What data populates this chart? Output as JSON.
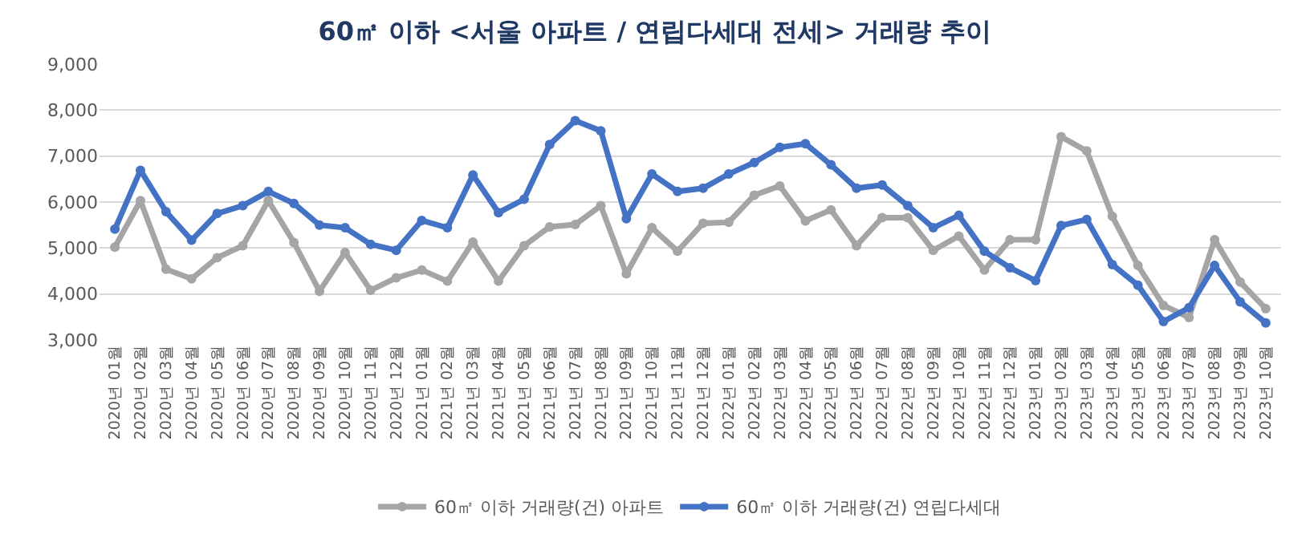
{
  "chart_data": {
    "type": "line",
    "title": "60㎡ 이하 <서울 아파트 / 연립다세대 전세> 거래량 추이",
    "categories": [
      "2020년 01월",
      "2020년 02월",
      "2020년 03월",
      "2020년 04월",
      "2020년 05월",
      "2020년 06월",
      "2020년 07월",
      "2020년 08월",
      "2020년 09월",
      "2020년 10월",
      "2020년 11월",
      "2020년 12월",
      "2021년 01월",
      "2021년 02월",
      "2021년 03월",
      "2021년 04월",
      "2021년 05월",
      "2021년 06월",
      "2021년 07월",
      "2021년 08월",
      "2021년 09월",
      "2021년 10월",
      "2021년 11월",
      "2021년 12월",
      "2022년 01월",
      "2022년 02월",
      "2022년 03월",
      "2022년 04월",
      "2022년 05월",
      "2022년 06월",
      "2022년 07월",
      "2022년 08월",
      "2022년 09월",
      "2022년 10월",
      "2022년 11월",
      "2022년 12월",
      "2023년 01월",
      "2023년 02월",
      "2023년 03월",
      "2023년 04월",
      "2023년 05월",
      "2023년 06월",
      "2023년 07월",
      "2023년 08월",
      "2023년 09월",
      "2023년 10월"
    ],
    "series": [
      {
        "name": "60㎡ 이하 거래량(건) 아파트",
        "color": "#a5a5a5",
        "values": [
          5020,
          6030,
          4540,
          4330,
          4790,
          5050,
          6030,
          5120,
          4060,
          4900,
          4080,
          4350,
          4520,
          4280,
          5130,
          4280,
          5050,
          5460,
          5510,
          5920,
          4440,
          5440,
          4930,
          5540,
          5560,
          6150,
          6350,
          5590,
          5830,
          5050,
          5660,
          5660,
          4950,
          5260,
          4520,
          5180,
          5180,
          7420,
          7110,
          5690,
          4620,
          3750,
          3490,
          5180,
          4260,
          3680
        ]
      },
      {
        "name": "60㎡ 이하 거래량(건) 연립다세대",
        "color": "#4472c4",
        "values": [
          5410,
          6690,
          5790,
          5170,
          5750,
          5920,
          6230,
          5970,
          5500,
          5440,
          5080,
          4950,
          5600,
          5440,
          6590,
          5770,
          6060,
          7250,
          7770,
          7550,
          5640,
          6610,
          6230,
          6300,
          6610,
          6860,
          7190,
          7270,
          6810,
          6300,
          6370,
          5920,
          5440,
          5710,
          4930,
          4570,
          4290,
          5490,
          5620,
          4640,
          4190,
          3400,
          3700,
          4620,
          3830,
          3370
        ]
      }
    ],
    "ylim": [
      3000,
      9000
    ],
    "yticks": [
      {
        "value": 3000,
        "label": "3,000"
      },
      {
        "value": 4000,
        "label": "4,000"
      },
      {
        "value": 5000,
        "label": "5,000"
      },
      {
        "value": 6000,
        "label": "6,000"
      },
      {
        "value": 7000,
        "label": "7,000"
      },
      {
        "value": 8000,
        "label": "8,000"
      },
      {
        "value": 9000,
        "label": "9,000"
      }
    ],
    "grid": "y",
    "legend": "bottom",
    "marker": "circle",
    "line_style": "solid"
  }
}
